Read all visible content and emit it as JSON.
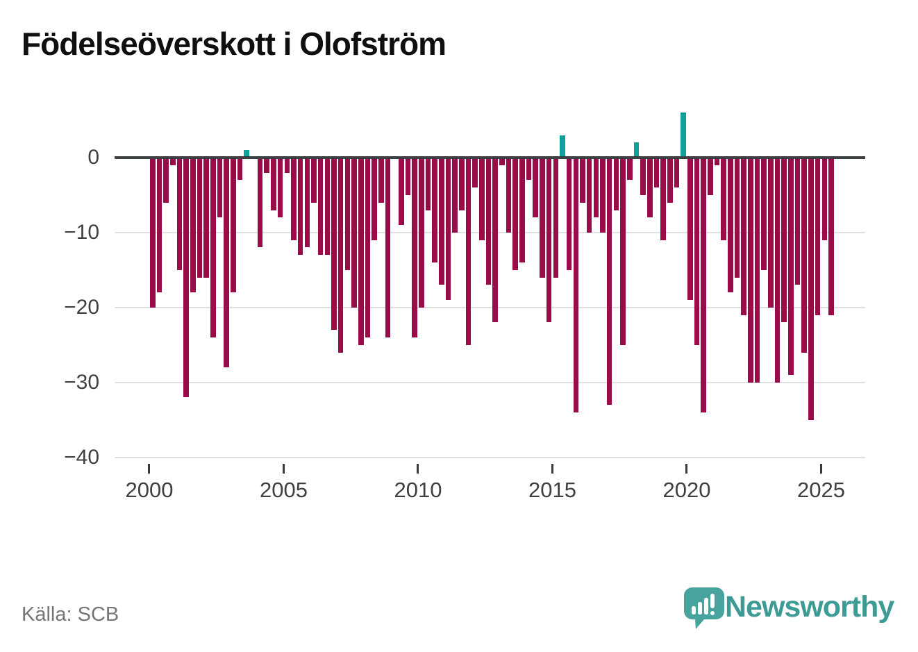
{
  "title": "Födelseöverskott i Olofström",
  "source_text": "Källa: SCB",
  "branding": {
    "name": "Newsworthy",
    "icon": "newsworthy-speech-bubble-bar-chart-logo"
  },
  "colors": {
    "negative_bar": "#9a0c49",
    "positive_bar": "#12a09a",
    "zero_axis": "#3d4043",
    "gridline": "#e0e0e0",
    "axis_text": "#3f3f3f",
    "source_text": "#767676",
    "brand_teal": "#3d9b96",
    "logo_teal": "#48a29d",
    "title_text": "#0f0f0f"
  },
  "chart_data": {
    "type": "bar",
    "title": "Födelseöverskott i Olofström",
    "xlabel": "",
    "ylabel": "",
    "x_unit": "quarter",
    "start": "2000Q1",
    "end": "2025Q2",
    "x_tick_labels": [
      "2000",
      "2005",
      "2010",
      "2015",
      "2020",
      "2025"
    ],
    "x_tick_years": [
      2000,
      2005,
      2010,
      2015,
      2020,
      2025
    ],
    "y_tick_labels": [
      "0",
      "−10",
      "−20",
      "−30",
      "−40"
    ],
    "y_tick_values": [
      0,
      -10,
      -20,
      -30,
      -40
    ],
    "ylim": [
      -40,
      8
    ],
    "grid": "horizontal",
    "legend": "none",
    "quarters": [
      "2000Q1",
      "2000Q2",
      "2000Q3",
      "2000Q4",
      "2001Q1",
      "2001Q2",
      "2001Q3",
      "2001Q4",
      "2002Q1",
      "2002Q2",
      "2002Q3",
      "2002Q4",
      "2003Q1",
      "2003Q2",
      "2003Q3",
      "2003Q4",
      "2004Q1",
      "2004Q2",
      "2004Q3",
      "2004Q4",
      "2005Q1",
      "2005Q2",
      "2005Q3",
      "2005Q4",
      "2006Q1",
      "2006Q2",
      "2006Q3",
      "2006Q4",
      "2007Q1",
      "2007Q2",
      "2007Q3",
      "2007Q4",
      "2008Q1",
      "2008Q2",
      "2008Q3",
      "2008Q4",
      "2009Q1",
      "2009Q2",
      "2009Q3",
      "2009Q4",
      "2010Q1",
      "2010Q2",
      "2010Q3",
      "2010Q4",
      "2011Q1",
      "2011Q2",
      "2011Q3",
      "2011Q4",
      "2012Q1",
      "2012Q2",
      "2012Q3",
      "2012Q4",
      "2013Q1",
      "2013Q2",
      "2013Q3",
      "2013Q4",
      "2014Q1",
      "2014Q2",
      "2014Q3",
      "2014Q4",
      "2015Q1",
      "2015Q2",
      "2015Q3",
      "2015Q4",
      "2016Q1",
      "2016Q2",
      "2016Q3",
      "2016Q4",
      "2017Q1",
      "2017Q2",
      "2017Q3",
      "2017Q4",
      "2018Q1",
      "2018Q2",
      "2018Q3",
      "2018Q4",
      "2019Q1",
      "2019Q2",
      "2019Q3",
      "2019Q4",
      "2020Q1",
      "2020Q2",
      "2020Q3",
      "2020Q4",
      "2021Q1",
      "2021Q2",
      "2021Q3",
      "2021Q4",
      "2022Q1",
      "2022Q2",
      "2022Q3",
      "2022Q4",
      "2023Q1",
      "2023Q2",
      "2023Q3",
      "2023Q4",
      "2024Q1",
      "2024Q2",
      "2024Q3",
      "2024Q4",
      "2025Q1",
      "2025Q2"
    ],
    "values": [
      -20,
      -18,
      -6,
      -1,
      -15,
      -32,
      -18,
      -16,
      -16,
      -24,
      -8,
      -28,
      -18,
      -3,
      1,
      0,
      -12,
      -2,
      -7,
      -8,
      -2,
      -11,
      -13,
      -12,
      -6,
      -13,
      -13,
      -23,
      -26,
      -15,
      -20,
      -25,
      -24,
      -11,
      -6,
      -24,
      0,
      -9,
      -5,
      -24,
      -20,
      -7,
      -14,
      -17,
      -19,
      -10,
      -7,
      -25,
      -4,
      -11,
      -17,
      -22,
      -1,
      -10,
      -15,
      -14,
      -3,
      -8,
      -16,
      -22,
      -16,
      3,
      -15,
      -34,
      -6,
      -10,
      -8,
      -10,
      -33,
      -7,
      -25,
      -3,
      2,
      -5,
      -8,
      -4,
      -11,
      -6,
      -4,
      6,
      -19,
      -25,
      -34,
      -5,
      -1,
      -11,
      -18,
      -16,
      -21,
      -30,
      -30,
      -15,
      -20,
      -30,
      -22,
      -29,
      -17,
      -26,
      -35,
      -21,
      -11,
      -21
    ]
  }
}
